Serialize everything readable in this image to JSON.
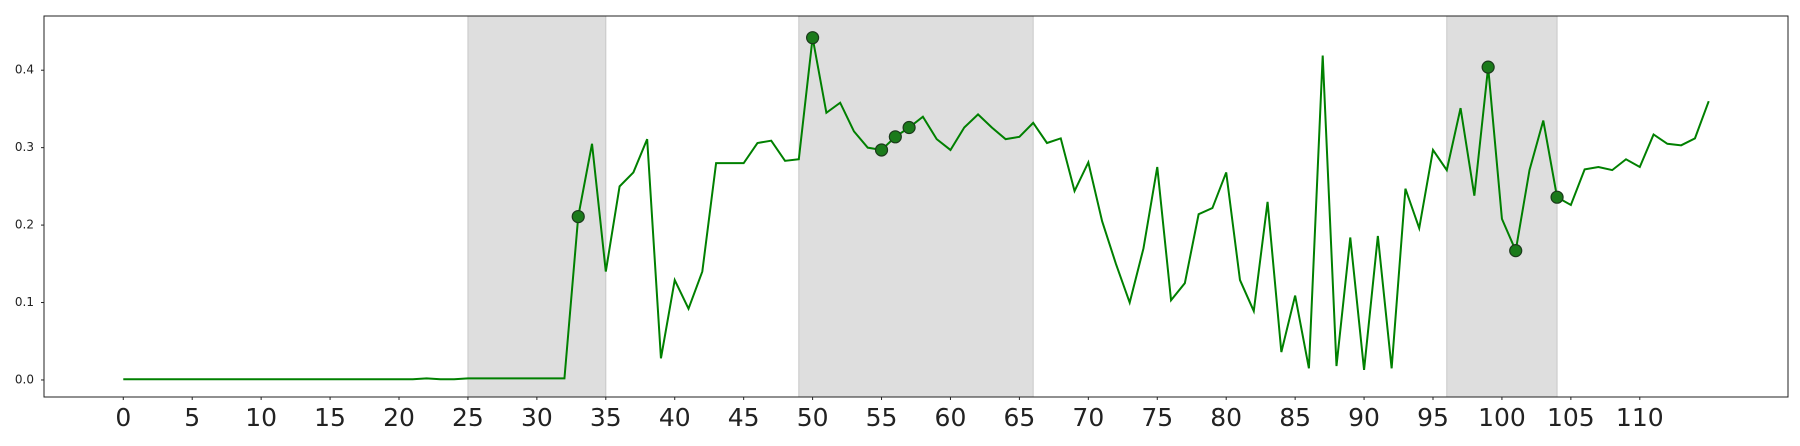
{
  "chart_data": {
    "type": "line",
    "x": [
      0,
      1,
      2,
      3,
      4,
      5,
      6,
      7,
      8,
      9,
      10,
      11,
      12,
      13,
      14,
      15,
      16,
      17,
      18,
      19,
      20,
      21,
      22,
      23,
      24,
      25,
      26,
      27,
      28,
      29,
      30,
      31,
      32,
      33,
      34,
      35,
      36,
      37,
      38,
      39,
      40,
      41,
      42,
      43,
      44,
      45,
      46,
      47,
      48,
      49,
      50,
      51,
      52,
      53,
      54,
      55,
      56,
      57,
      58,
      59,
      60,
      61,
      62,
      63,
      64,
      65,
      66,
      67,
      68,
      69,
      70,
      71,
      72,
      73,
      74,
      75,
      76,
      77,
      78,
      79,
      80,
      81,
      82,
      83,
      84,
      85,
      86,
      87,
      88,
      89,
      90,
      91,
      92,
      93,
      94,
      95,
      96,
      97,
      98,
      99,
      100,
      101,
      102,
      103,
      104,
      105,
      106,
      107,
      108,
      109,
      110,
      111,
      112,
      113,
      114,
      115
    ],
    "values": [
      0.001,
      0.001,
      0.001,
      0.001,
      0.001,
      0.001,
      0.001,
      0.001,
      0.001,
      0.001,
      0.001,
      0.001,
      0.001,
      0.001,
      0.001,
      0.001,
      0.001,
      0.001,
      0.001,
      0.001,
      0.001,
      0.001,
      0.002,
      0.001,
      0.001,
      0.002,
      0.002,
      0.002,
      0.002,
      0.002,
      0.002,
      0.002,
      0.002,
      0.211,
      0.305,
      0.14,
      0.25,
      0.268,
      0.311,
      0.028,
      0.129,
      0.092,
      0.14,
      0.28,
      0.28,
      0.28,
      0.306,
      0.309,
      0.283,
      0.285,
      0.442,
      0.345,
      0.358,
      0.321,
      0.3,
      0.297,
      0.314,
      0.326,
      0.34,
      0.311,
      0.297,
      0.326,
      0.343,
      0.326,
      0.311,
      0.314,
      0.332,
      0.306,
      0.312,
      0.244,
      0.281,
      0.205,
      0.15,
      0.1,
      0.17,
      0.275,
      0.103,
      0.125,
      0.214,
      0.222,
      0.268,
      0.129,
      0.089,
      0.23,
      0.036,
      0.109,
      0.015,
      0.419,
      0.018,
      0.184,
      0.013,
      0.186,
      0.015,
      0.247,
      0.196,
      0.297,
      0.271,
      0.351,
      0.238,
      0.404,
      0.208,
      0.167,
      0.271,
      0.335,
      0.236,
      0.226,
      0.272,
      0.275,
      0.271,
      0.285,
      0.275,
      0.317,
      0.305,
      0.303,
      0.312,
      0.36
    ],
    "color": "#008000",
    "markers": [
      33,
      50,
      55,
      56,
      57,
      99,
      101,
      104
    ],
    "marker_color": "#1a7a1a",
    "shaded_spans": [
      [
        25,
        35
      ],
      [
        49,
        66
      ],
      [
        96,
        104
      ]
    ],
    "shade_color": "#dedede",
    "xlim": [
      -5.75,
      120.75
    ],
    "ylim": [
      -0.022,
      0.47
    ],
    "xticks": [
      0,
      5,
      10,
      15,
      20,
      25,
      30,
      35,
      40,
      45,
      50,
      55,
      60,
      65,
      70,
      75,
      80,
      85,
      90,
      95,
      100,
      105,
      110
    ],
    "yticks": [
      {
        "value": 0,
        "label": "0.0"
      },
      0.1,
      0.2,
      0.3,
      0.4
    ],
    "grid": false
  }
}
